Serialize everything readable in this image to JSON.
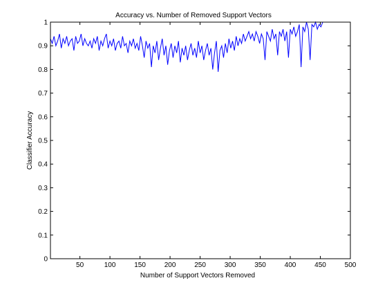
{
  "chart_data": {
    "type": "line",
    "title": "Accuracy vs. Number of Removed Support Vectors",
    "xlabel": "Number of Support Vectors Removed",
    "ylabel": "Classifier Accuracy",
    "xlim": [
      1,
      500
    ],
    "ylim": [
      0,
      1
    ],
    "xticks": [
      50,
      100,
      150,
      200,
      250,
      300,
      350,
      400,
      450,
      500
    ],
    "yticks": [
      0,
      0.1,
      0.2,
      0.3,
      0.4,
      0.5,
      0.6,
      0.7,
      0.8,
      0.9,
      1
    ],
    "grid": false,
    "line_color": "#0000ff",
    "series": [
      {
        "x_start": 1,
        "x_step": 3,
        "values": [
          0.93,
          0.91,
          0.94,
          0.9,
          0.92,
          0.95,
          0.89,
          0.93,
          0.91,
          0.94,
          0.9,
          0.92,
          0.93,
          0.88,
          0.94,
          0.91,
          0.92,
          0.95,
          0.9,
          0.93,
          0.91,
          0.9,
          0.92,
          0.89,
          0.93,
          0.91,
          0.94,
          0.88,
          0.92,
          0.9,
          0.93,
          0.95,
          0.89,
          0.92,
          0.9,
          0.93,
          0.88,
          0.91,
          0.92,
          0.89,
          0.94,
          0.9,
          0.91,
          0.87,
          0.92,
          0.9,
          0.93,
          0.89,
          0.91,
          0.88,
          0.94,
          0.9,
          0.85,
          0.92,
          0.89,
          0.91,
          0.81,
          0.9,
          0.87,
          0.92,
          0.84,
          0.89,
          0.93,
          0.86,
          0.9,
          0.82,
          0.88,
          0.91,
          0.85,
          0.9,
          0.87,
          0.92,
          0.83,
          0.89,
          0.86,
          0.9,
          0.84,
          0.88,
          0.91,
          0.86,
          0.89,
          0.85,
          0.92,
          0.87,
          0.9,
          0.84,
          0.88,
          0.91,
          0.86,
          0.89,
          0.8,
          0.87,
          0.92,
          0.79,
          0.88,
          0.9,
          0.85,
          0.91,
          0.87,
          0.93,
          0.89,
          0.92,
          0.88,
          0.94,
          0.9,
          0.93,
          0.91,
          0.95,
          0.92,
          0.94,
          0.96,
          0.93,
          0.95,
          0.92,
          0.96,
          0.94,
          0.91,
          0.95,
          0.93,
          0.84,
          0.96,
          0.94,
          0.92,
          0.97,
          0.93,
          0.95,
          0.86,
          0.96,
          0.94,
          0.97,
          0.92,
          0.96,
          0.85,
          0.97,
          0.95,
          0.98,
          0.94,
          0.96,
          0.99,
          0.81,
          0.98,
          0.96,
          1.0,
          0.97,
          0.84,
          0.99,
          0.98,
          1.0,
          0.97,
          0.99,
          0.98,
          1.0
        ]
      }
    ]
  }
}
